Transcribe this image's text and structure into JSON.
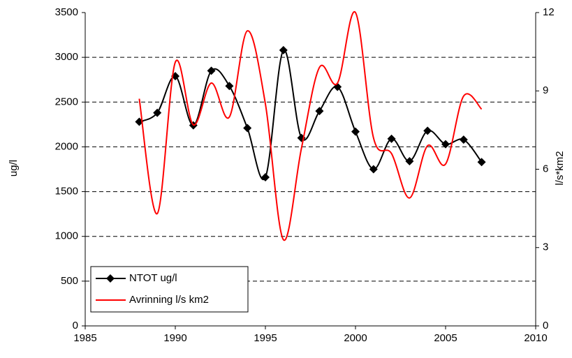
{
  "chart_data": {
    "type": "line",
    "x": [
      1988,
      1989,
      1990,
      1991,
      1992,
      1993,
      1994,
      1995,
      1996,
      1997,
      1998,
      1999,
      2000,
      2001,
      2002,
      2003,
      2004,
      2005,
      2006,
      2007
    ],
    "series": [
      {
        "name": "NTOT ug/l",
        "color": "#000000",
        "marker": "diamond",
        "values": [
          2280,
          2380,
          2790,
          2240,
          2850,
          2680,
          2210,
          1660,
          3080,
          2100,
          2400,
          2670,
          2170,
          1750,
          2090,
          1840,
          2180,
          2030,
          2080,
          1830
        ]
      },
      {
        "name": "Avrinning l/s km2",
        "color": "#ff0000",
        "axis": "y2",
        "values": [
          8.7,
          4.3,
          10.1,
          7.7,
          9.3,
          8.0,
          11.3,
          8.5,
          3.3,
          6.8,
          9.9,
          9.3,
          12.0,
          7.2,
          6.6,
          4.9,
          6.9,
          6.2,
          8.8,
          8.3
        ]
      }
    ],
    "xlim": [
      1985,
      2010
    ],
    "xticks": [
      1985,
      1990,
      1995,
      2000,
      2005,
      2010
    ],
    "ylim": [
      0,
      3500
    ],
    "yticks": [
      0,
      500,
      1000,
      1500,
      2000,
      2500,
      3000,
      3500
    ],
    "y2lim": [
      0,
      12
    ],
    "y2ticks": [
      0,
      3,
      6,
      9,
      12
    ],
    "ylabel": "ug/l",
    "y2label": "l/s*km2",
    "grid": true,
    "legend": "lower left"
  }
}
